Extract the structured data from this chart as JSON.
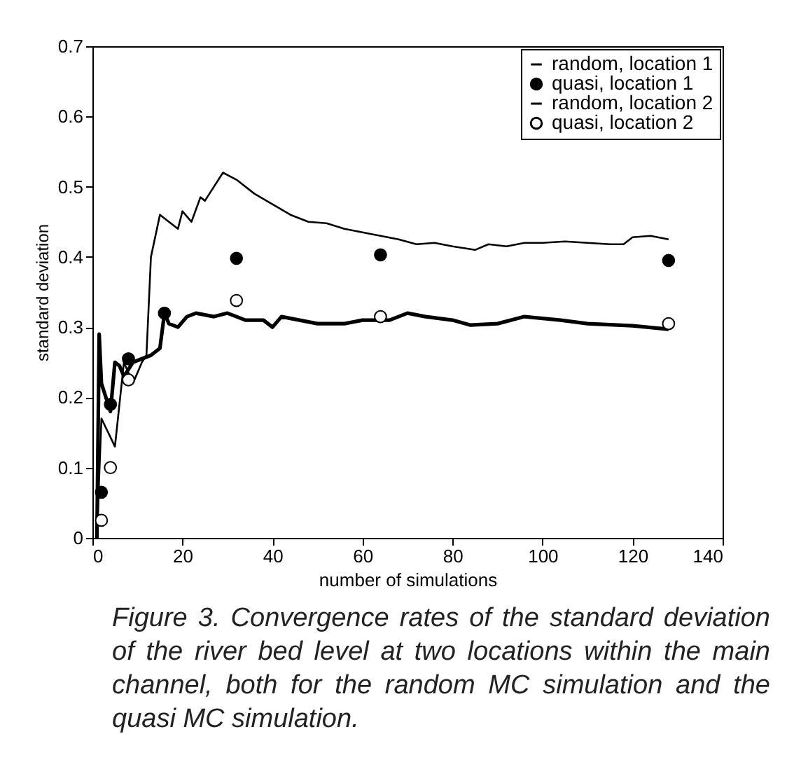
{
  "chart_data": {
    "type": "line",
    "xlabel": "number of simulations",
    "ylabel": "standard deviation",
    "xlim": [
      0,
      140
    ],
    "xticks": [
      0,
      20,
      40,
      60,
      80,
      100,
      120,
      140
    ],
    "ylim": [
      0,
      0.7
    ],
    "yticks": [
      0,
      0.1,
      0.2,
      0.3,
      0.4,
      0.5,
      0.6,
      0.7
    ],
    "legend": "top right",
    "grid": false,
    "series": [
      {
        "name": "random, location 1",
        "color": "#000000",
        "x": [
          1,
          2,
          5,
          7,
          9,
          11,
          12,
          13,
          15,
          17,
          19,
          20,
          22,
          24,
          25,
          26,
          29,
          32,
          36,
          40,
          44,
          48,
          52,
          56,
          60,
          64,
          68,
          72,
          76,
          80,
          85,
          88,
          92,
          96,
          100,
          105,
          110,
          115,
          118,
          120,
          124,
          128
        ],
        "values": [
          0,
          0.17,
          0.13,
          0.25,
          0.22,
          0.25,
          0.26,
          0.4,
          0.46,
          0.45,
          0.44,
          0.465,
          0.45,
          0.485,
          0.48,
          0.49,
          0.52,
          0.51,
          0.49,
          0.475,
          0.46,
          0.45,
          0.448,
          0.44,
          0.435,
          0.43,
          0.425,
          0.418,
          0.42,
          0.415,
          0.41,
          0.418,
          0.415,
          0.42,
          0.42,
          0.422,
          0.42,
          0.418,
          0.418,
          0.428,
          0.43,
          0.425
        ]
      },
      {
        "name": "quasi, location 1",
        "type": "scatter",
        "marker": "circle",
        "color": "#000000",
        "x": [
          2,
          4,
          8,
          16,
          32,
          64,
          128
        ],
        "values": [
          0.065,
          0.19,
          0.255,
          0.32,
          0.398,
          0.403,
          0.395
        ]
      },
      {
        "name": "random, location 2",
        "color": "#000000",
        "x": [
          1,
          1.5,
          2,
          3,
          4,
          5,
          6,
          7,
          9,
          11,
          13,
          15,
          16,
          17,
          19,
          21,
          23,
          27,
          30,
          34,
          38,
          40,
          42,
          46,
          50,
          56,
          60,
          66,
          70,
          74,
          80,
          84,
          90,
          96,
          104,
          110,
          120,
          128
        ],
        "values": [
          0,
          0.29,
          0.22,
          0.2,
          0.18,
          0.25,
          0.245,
          0.23,
          0.25,
          0.255,
          0.26,
          0.27,
          0.32,
          0.305,
          0.3,
          0.315,
          0.32,
          0.315,
          0.32,
          0.31,
          0.31,
          0.3,
          0.315,
          0.31,
          0.305,
          0.305,
          0.31,
          0.31,
          0.32,
          0.315,
          0.31,
          0.303,
          0.305,
          0.315,
          0.31,
          0.305,
          0.302,
          0.297
        ]
      },
      {
        "name": "quasi, location 2",
        "type": "scatter",
        "marker": "circle",
        "color": "#ffffff",
        "x": [
          2,
          4,
          8,
          32,
          64,
          128
        ],
        "values": [
          0.025,
          0.1,
          0.225,
          0.338,
          0.315,
          0.305
        ]
      }
    ],
    "annotations": [
      "Figure 3. Convergence rates of the standard deviation of the river bed level at two locations within the main channel, both for the random MC simulation and the quasi MC simulation."
    ]
  }
}
